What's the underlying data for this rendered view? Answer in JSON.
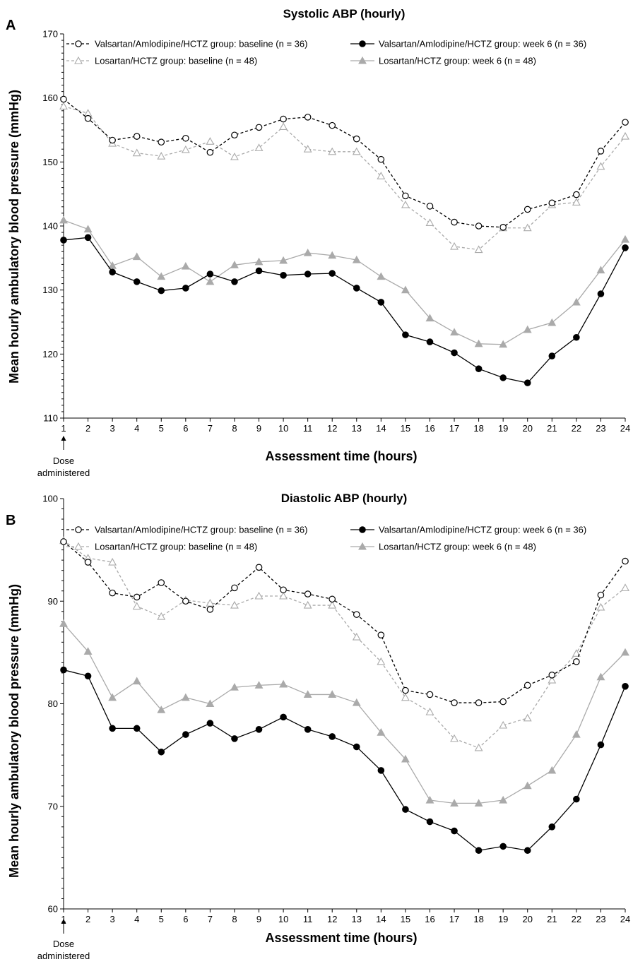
{
  "chart_data": [
    {
      "type": "line",
      "panel": "A",
      "title": "Systolic ABP (hourly)",
      "xlabel": "Assessment time (hours)",
      "ylabel": "Mean hourly ambulatory blood pressure (mmHg)",
      "annotation": "Dose administered",
      "xlim": [
        1,
        24
      ],
      "ylim": [
        110,
        170
      ],
      "yticks": [
        110,
        120,
        130,
        140,
        150,
        160,
        170
      ],
      "x": [
        1,
        2,
        3,
        4,
        5,
        6,
        7,
        8,
        9,
        10,
        11,
        12,
        13,
        14,
        15,
        16,
        17,
        18,
        19,
        20,
        21,
        22,
        23,
        24
      ],
      "legend_position": "top",
      "series": [
        {
          "name": "Valsartan/Amlodipine/HCTZ group: baseline (n = 36)",
          "color": "#000000",
          "dash": "dashed",
          "marker": "open-circle",
          "values": [
            159.8,
            156.8,
            153.4,
            154,
            153.1,
            153.7,
            151.5,
            154.2,
            155.4,
            156.7,
            157,
            155.7,
            153.6,
            150.4,
            144.7,
            143.1,
            140.6,
            140,
            139.8,
            142.6,
            143.6,
            144.9,
            151.7,
            156.2
          ]
        },
        {
          "name": "Valsartan/Amlodipine/HCTZ group: week 6 (n = 36)",
          "color": "#000000",
          "dash": "solid",
          "marker": "filled-circle",
          "values": [
            137.8,
            138.2,
            132.8,
            131.3,
            129.9,
            130.3,
            132.5,
            131.3,
            133,
            132.3,
            132.5,
            132.6,
            130.3,
            128.1,
            123,
            121.9,
            120.2,
            117.7,
            116.3,
            115.5,
            119.7,
            122.6,
            129.4,
            136.6
          ]
        },
        {
          "name": "Losartan/HCTZ group: baseline (n = 48)",
          "color": "#aaaaaa",
          "dash": "dashed",
          "marker": "open-triangle",
          "values": [
            158.7,
            157.6,
            152.9,
            151.4,
            150.9,
            151.9,
            153.2,
            150.8,
            152.2,
            155.5,
            152,
            151.6,
            151.6,
            147.8,
            143.3,
            140.5,
            136.8,
            136.3,
            139.7,
            139.7,
            143.3,
            143.7,
            149.3,
            154
          ]
        },
        {
          "name": "Losartan/HCTZ group: week 6 (n = 48)",
          "color": "#aaaaaa",
          "dash": "solid",
          "marker": "filled-triangle",
          "values": [
            140.9,
            139.5,
            133.8,
            135.2,
            132.1,
            133.7,
            131.3,
            133.9,
            134.4,
            134.6,
            135.8,
            135.4,
            134.7,
            132.1,
            130,
            125.6,
            123.4,
            121.6,
            121.5,
            123.8,
            124.9,
            128.1,
            133.1,
            137.9
          ]
        }
      ]
    },
    {
      "type": "line",
      "panel": "B",
      "title": "Diastolic ABP (hourly)",
      "xlabel": "Assessment time (hours)",
      "ylabel": "Mean hourly ambulatory blood pressure (mmHg)",
      "annotation": "Dose administered",
      "xlim": [
        1,
        24
      ],
      "ylim": [
        60,
        100
      ],
      "yticks": [
        60,
        70,
        80,
        90,
        100
      ],
      "x": [
        1,
        2,
        3,
        4,
        5,
        6,
        7,
        8,
        9,
        10,
        11,
        12,
        13,
        14,
        15,
        16,
        17,
        18,
        19,
        20,
        21,
        22,
        23,
        24
      ],
      "legend_position": "top",
      "series": [
        {
          "name": "Valsartan/Amlodipine/HCTZ group: baseline (n = 36)",
          "color": "#000000",
          "dash": "dashed",
          "marker": "open-circle",
          "values": [
            95.8,
            93.8,
            90.8,
            90.4,
            91.8,
            90,
            89.2,
            91.3,
            93.3,
            91.1,
            90.7,
            90.2,
            88.7,
            86.7,
            81.3,
            80.9,
            80.1,
            80.1,
            80.2,
            81.8,
            82.8,
            84.1,
            90.6,
            93.9
          ]
        },
        {
          "name": "Valsartan/Amlodipine/HCTZ group: week 6 (n = 36)",
          "color": "#000000",
          "dash": "solid",
          "marker": "filled-circle",
          "values": [
            83.3,
            82.7,
            77.6,
            77.6,
            75.3,
            77,
            78.1,
            76.6,
            77.5,
            78.7,
            77.5,
            76.8,
            75.8,
            73.5,
            69.7,
            68.5,
            67.6,
            65.7,
            66.1,
            65.7,
            68,
            70.7,
            76,
            81.7
          ]
        },
        {
          "name": "Losartan/HCTZ group: baseline (n = 48)",
          "color": "#aaaaaa",
          "dash": "dashed",
          "marker": "open-triangle",
          "values": [
            95.9,
            94.2,
            93.8,
            89.5,
            88.5,
            90.1,
            89.8,
            89.6,
            90.5,
            90.5,
            89.6,
            89.6,
            86.5,
            84.1,
            80.6,
            79.2,
            76.6,
            75.7,
            77.9,
            78.6,
            82.3,
            84.9,
            89.4,
            91.3
          ]
        },
        {
          "name": "Losartan/HCTZ group: week 6 (n = 48)",
          "color": "#aaaaaa",
          "dash": "solid",
          "marker": "filled-triangle",
          "values": [
            87.8,
            85.1,
            80.6,
            82.2,
            79.4,
            80.6,
            80,
            81.6,
            81.8,
            81.9,
            80.9,
            80.9,
            80.1,
            77.2,
            74.6,
            70.6,
            70.3,
            70.3,
            70.6,
            72,
            73.5,
            77,
            82.6,
            85
          ]
        }
      ]
    }
  ]
}
